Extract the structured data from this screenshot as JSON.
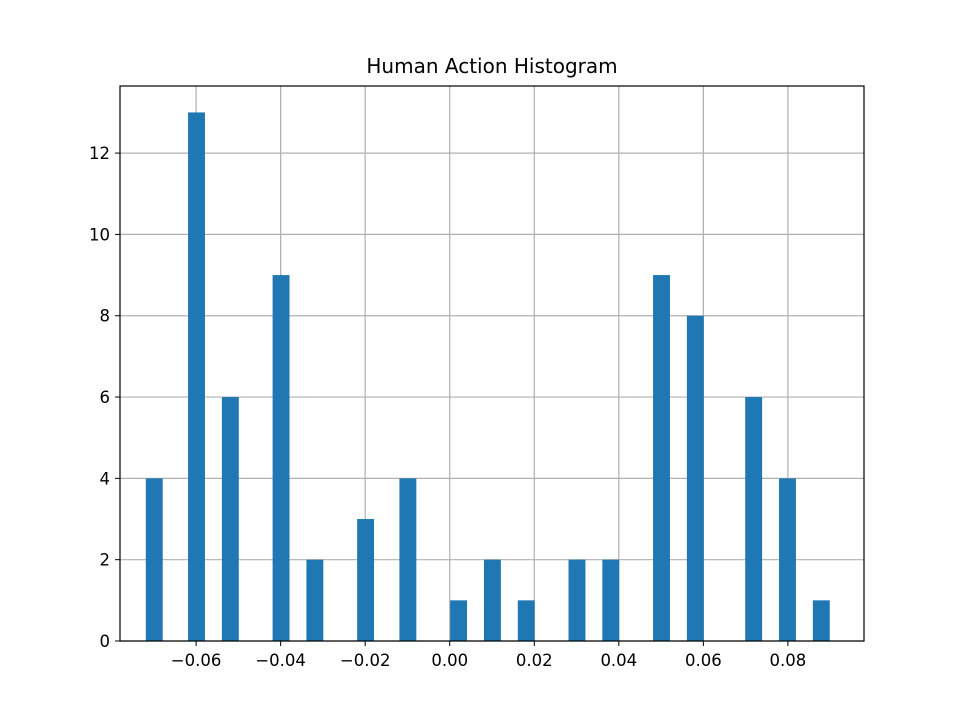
{
  "chart_data": {
    "type": "bar",
    "title": "Human Action Histogram",
    "xlabel": "",
    "ylabel": "",
    "bar_color": "#1f77b4",
    "grid": true,
    "xlim": [
      -0.078,
      0.098
    ],
    "ylim": [
      0,
      13.65
    ],
    "xticks": [
      -0.06,
      -0.04,
      -0.02,
      0.0,
      0.02,
      0.04,
      0.06,
      0.08
    ],
    "xtick_labels": [
      "−0.06",
      "−0.04",
      "−0.02",
      "0.00",
      "0.02",
      "0.04",
      "0.06",
      "0.08"
    ],
    "yticks": [
      0,
      2,
      4,
      6,
      8,
      10,
      12
    ],
    "ytick_labels": [
      "0",
      "2",
      "4",
      "6",
      "8",
      "10",
      "12"
    ],
    "bin_width": 0.004,
    "bins": [
      {
        "x": -0.0699,
        "count": 4
      },
      {
        "x": -0.0599,
        "count": 13
      },
      {
        "x": -0.0519,
        "count": 6
      },
      {
        "x": -0.0399,
        "count": 9
      },
      {
        "x": -0.0319,
        "count": 2
      },
      {
        "x": -0.0199,
        "count": 3
      },
      {
        "x": -0.0099,
        "count": 4
      },
      {
        "x": 0.0021,
        "count": 1
      },
      {
        "x": 0.0101,
        "count": 2
      },
      {
        "x": 0.0181,
        "count": 1
      },
      {
        "x": 0.0301,
        "count": 2
      },
      {
        "x": 0.0381,
        "count": 2
      },
      {
        "x": 0.0501,
        "count": 9
      },
      {
        "x": 0.0581,
        "count": 8
      },
      {
        "x": 0.0719,
        "count": 6
      },
      {
        "x": 0.0799,
        "count": 4
      },
      {
        "x": 0.0879,
        "count": 1
      }
    ]
  }
}
